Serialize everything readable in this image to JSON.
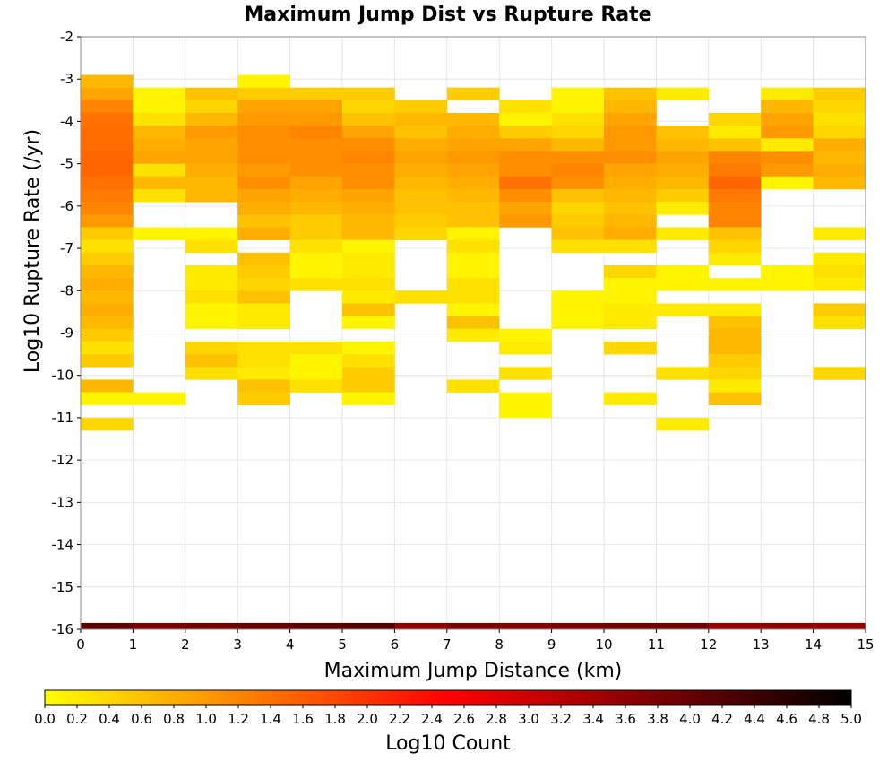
{
  "chart_data": {
    "type": "heatmap",
    "title": "Maximum Jump Dist vs Rupture Rate",
    "xlabel": "Maximum Jump Distance (km)",
    "ylabel": "Log10 Rupture Rate (/yr)",
    "xlim": [
      0,
      15
    ],
    "ylim": [
      -16,
      -2
    ],
    "x_ticks": [
      0,
      1,
      2,
      3,
      4,
      5,
      6,
      7,
      8,
      9,
      10,
      11,
      12,
      13,
      14,
      15
    ],
    "y_ticks": [
      -16,
      -15,
      -14,
      -13,
      -12,
      -11,
      -10,
      -9,
      -8,
      -7,
      -6,
      -5,
      -4,
      -3,
      -2
    ],
    "x_bin_width": 1,
    "y_bin_height": 0.3,
    "grid": true,
    "colorbar": {
      "label": "Log10 Count",
      "min": 0.0,
      "max": 5.0,
      "ticks": [
        "0.0",
        "0.2",
        "0.4",
        "0.6",
        "0.8",
        "1.0",
        "1.2",
        "1.4",
        "1.6",
        "1.8",
        "2.0",
        "2.2",
        "2.4",
        "2.6",
        "2.8",
        "3.0",
        "3.2",
        "3.4",
        "3.6",
        "3.8",
        "4.0",
        "4.2",
        "4.4",
        "4.6",
        "4.8",
        "5.0"
      ],
      "colors": [
        "#ffff00",
        "#ff8000",
        "#ff0000",
        "#800000",
        "#000000"
      ],
      "placement": "bottom"
    },
    "columns": [
      {
        "x": 0,
        "cells": [
          [
            -3.2,
            0.7
          ],
          [
            -3.5,
            0.9
          ],
          [
            -3.8,
            1.2
          ],
          [
            -4.1,
            1.4
          ],
          [
            -4.4,
            1.45
          ],
          [
            -4.7,
            1.45
          ],
          [
            -5.0,
            1.5
          ],
          [
            -5.3,
            1.5
          ],
          [
            -5.6,
            1.4
          ],
          [
            -5.9,
            1.3
          ],
          [
            -6.2,
            1.2
          ],
          [
            -6.5,
            1.0
          ],
          [
            -6.8,
            0.5
          ],
          [
            -7.1,
            0.3
          ],
          [
            -7.4,
            0.5
          ],
          [
            -7.7,
            0.7
          ],
          [
            -8.0,
            0.8
          ],
          [
            -8.3,
            0.7
          ],
          [
            -8.6,
            0.8
          ],
          [
            -8.9,
            0.7
          ],
          [
            -9.2,
            0.5
          ],
          [
            -9.5,
            0.3
          ],
          [
            -9.8,
            0.5
          ],
          [
            -10.4,
            0.7
          ],
          [
            -10.7,
            0.1
          ],
          [
            -11.3,
            0.4
          ]
        ]
      },
      {
        "x": 1,
        "cells": [
          [
            -3.5,
            0.1
          ],
          [
            -3.8,
            0.1
          ],
          [
            -4.1,
            0.3
          ],
          [
            -4.4,
            0.7
          ],
          [
            -4.7,
            0.8
          ],
          [
            -5.0,
            0.9
          ],
          [
            -5.3,
            0.3
          ],
          [
            -5.6,
            0.7
          ],
          [
            -5.9,
            0.3
          ],
          [
            -6.8,
            0.1
          ],
          [
            -10.7,
            0.1
          ]
        ]
      },
      {
        "x": 2,
        "cells": [
          [
            -3.5,
            0.6
          ],
          [
            -3.8,
            0.4
          ],
          [
            -4.1,
            0.7
          ],
          [
            -4.4,
            1.0
          ],
          [
            -4.7,
            0.9
          ],
          [
            -5.0,
            0.9
          ],
          [
            -5.3,
            0.8
          ],
          [
            -5.6,
            0.7
          ],
          [
            -5.9,
            0.7
          ],
          [
            -6.8,
            0.1
          ],
          [
            -7.1,
            0.3
          ],
          [
            -7.7,
            0.2
          ],
          [
            -8.0,
            0.2
          ],
          [
            -8.3,
            0.3
          ],
          [
            -8.6,
            0.1
          ],
          [
            -8.9,
            0.1
          ],
          [
            -9.5,
            0.4
          ],
          [
            -9.8,
            0.6
          ],
          [
            -10.1,
            0.3
          ]
        ]
      },
      {
        "x": 3,
        "cells": [
          [
            -3.2,
            0.1
          ],
          [
            -3.5,
            0.5
          ],
          [
            -3.8,
            0.9
          ],
          [
            -4.1,
            1.0
          ],
          [
            -4.4,
            1.1
          ],
          [
            -4.7,
            1.1
          ],
          [
            -5.0,
            1.1
          ],
          [
            -5.3,
            1.0
          ],
          [
            -5.6,
            1.1
          ],
          [
            -5.9,
            0.9
          ],
          [
            -6.2,
            0.8
          ],
          [
            -6.5,
            0.6
          ],
          [
            -6.8,
            0.8
          ],
          [
            -7.4,
            0.6
          ],
          [
            -7.7,
            0.5
          ],
          [
            -8.0,
            0.4
          ],
          [
            -8.3,
            0.6
          ],
          [
            -8.6,
            0.2
          ],
          [
            -8.9,
            0.2
          ],
          [
            -9.5,
            0.3
          ],
          [
            -9.8,
            0.3
          ],
          [
            -10.1,
            0.2
          ],
          [
            -10.4,
            0.6
          ],
          [
            -10.7,
            0.5
          ]
        ]
      },
      {
        "x": 4,
        "cells": [
          [
            -3.5,
            0.5
          ],
          [
            -3.8,
            0.9
          ],
          [
            -4.1,
            1.0
          ],
          [
            -4.4,
            1.2
          ],
          [
            -4.7,
            1.1
          ],
          [
            -5.0,
            1.1
          ],
          [
            -5.3,
            1.1
          ],
          [
            -5.6,
            0.9
          ],
          [
            -5.9,
            0.8
          ],
          [
            -6.2,
            0.7
          ],
          [
            -6.5,
            0.5
          ],
          [
            -6.8,
            0.5
          ],
          [
            -7.1,
            0.3
          ],
          [
            -7.4,
            0.1
          ],
          [
            -7.7,
            0.1
          ],
          [
            -8.0,
            0.3
          ],
          [
            -9.5,
            0.3
          ],
          [
            -9.8,
            0.1
          ],
          [
            -10.1,
            0.1
          ],
          [
            -10.4,
            0.3
          ]
        ]
      },
      {
        "x": 5,
        "cells": [
          [
            -3.5,
            0.5
          ],
          [
            -3.8,
            0.4
          ],
          [
            -4.1,
            0.6
          ],
          [
            -4.4,
            0.9
          ],
          [
            -4.7,
            1.1
          ],
          [
            -5.0,
            1.2
          ],
          [
            -5.3,
            1.1
          ],
          [
            -5.6,
            1.1
          ],
          [
            -5.9,
            0.9
          ],
          [
            -6.2,
            0.8
          ],
          [
            -6.5,
            0.7
          ],
          [
            -6.8,
            0.7
          ],
          [
            -7.1,
            0.1
          ],
          [
            -7.4,
            0.2
          ],
          [
            -7.7,
            0.2
          ],
          [
            -8.0,
            0.3
          ],
          [
            -8.3,
            0.2
          ],
          [
            -8.6,
            0.6
          ],
          [
            -8.9,
            0.1
          ],
          [
            -9.5,
            0.1
          ],
          [
            -9.8,
            0.3
          ],
          [
            -10.1,
            0.5
          ],
          [
            -10.4,
            0.5
          ],
          [
            -10.7,
            0.1
          ]
        ]
      },
      {
        "x": 6,
        "cells": [
          [
            -3.8,
            0.5
          ],
          [
            -4.1,
            0.7
          ],
          [
            -4.4,
            0.6
          ],
          [
            -4.7,
            0.8
          ],
          [
            -5.0,
            0.9
          ],
          [
            -5.3,
            0.8
          ],
          [
            -5.6,
            0.7
          ],
          [
            -5.9,
            0.6
          ],
          [
            -6.2,
            0.6
          ],
          [
            -6.5,
            0.5
          ],
          [
            -6.8,
            0.4
          ],
          [
            -8.3,
            0.3
          ]
        ]
      },
      {
        "x": 7,
        "cells": [
          [
            -3.5,
            0.5
          ],
          [
            -4.1,
            0.7
          ],
          [
            -4.4,
            0.8
          ],
          [
            -4.7,
            0.9
          ],
          [
            -5.0,
            1.0
          ],
          [
            -5.3,
            0.9
          ],
          [
            -5.6,
            0.8
          ],
          [
            -5.9,
            0.7
          ],
          [
            -6.2,
            0.6
          ],
          [
            -6.5,
            0.6
          ],
          [
            -6.8,
            0.1
          ],
          [
            -7.1,
            0.3
          ],
          [
            -7.4,
            0.1
          ],
          [
            -7.7,
            0.1
          ],
          [
            -8.0,
            0.3
          ],
          [
            -8.3,
            0.3
          ],
          [
            -8.6,
            0.1
          ],
          [
            -8.9,
            0.6
          ],
          [
            -9.2,
            0.2
          ],
          [
            -10.4,
            0.3
          ]
        ]
      },
      {
        "x": 8,
        "cells": [
          [
            -3.8,
            0.3
          ],
          [
            -4.1,
            0.1
          ],
          [
            -4.4,
            0.5
          ],
          [
            -4.7,
            0.9
          ],
          [
            -5.0,
            1.1
          ],
          [
            -5.3,
            1.1
          ],
          [
            -5.6,
            1.4
          ],
          [
            -5.9,
            1.1
          ],
          [
            -6.2,
            0.9
          ],
          [
            -6.5,
            1.0
          ],
          [
            -9.2,
            0.1
          ],
          [
            -9.5,
            0.2
          ],
          [
            -10.1,
            0.3
          ],
          [
            -10.7,
            0.1
          ],
          [
            -11.0,
            0.1
          ]
        ]
      },
      {
        "x": 9,
        "cells": [
          [
            -3.5,
            0.1
          ],
          [
            -3.8,
            0.1
          ],
          [
            -4.1,
            0.3
          ],
          [
            -4.4,
            0.4
          ],
          [
            -4.7,
            0.7
          ],
          [
            -5.0,
            1.1
          ],
          [
            -5.3,
            1.2
          ],
          [
            -5.6,
            1.1
          ],
          [
            -5.9,
            0.6
          ],
          [
            -6.2,
            0.4
          ],
          [
            -6.5,
            0.5
          ],
          [
            -6.8,
            0.6
          ],
          [
            -7.1,
            0.3
          ],
          [
            -8.3,
            0.1
          ],
          [
            -8.6,
            0.1
          ],
          [
            -8.9,
            0.1
          ]
        ]
      },
      {
        "x": 10,
        "cells": [
          [
            -3.5,
            0.6
          ],
          [
            -3.8,
            0.7
          ],
          [
            -4.1,
            0.9
          ],
          [
            -4.4,
            1.0
          ],
          [
            -4.7,
            1.0
          ],
          [
            -5.0,
            1.1
          ],
          [
            -5.3,
            0.9
          ],
          [
            -5.6,
            0.8
          ],
          [
            -5.9,
            0.7
          ],
          [
            -6.2,
            0.6
          ],
          [
            -6.5,
            0.7
          ],
          [
            -6.8,
            0.8
          ],
          [
            -7.1,
            0.3
          ],
          [
            -7.7,
            0.4
          ],
          [
            -8.0,
            0.1
          ],
          [
            -8.3,
            0.1
          ],
          [
            -8.6,
            0.2
          ],
          [
            -8.9,
            0.2
          ],
          [
            -9.5,
            0.4
          ],
          [
            -10.7,
            0.2
          ]
        ]
      },
      {
        "x": 11,
        "cells": [
          [
            -3.5,
            0.2
          ],
          [
            -4.4,
            0.6
          ],
          [
            -4.7,
            0.7
          ],
          [
            -5.0,
            0.9
          ],
          [
            -5.3,
            0.8
          ],
          [
            -5.6,
            0.7
          ],
          [
            -5.9,
            0.5
          ],
          [
            -6.2,
            0.2
          ],
          [
            -6.8,
            0.2
          ],
          [
            -7.7,
            0.1
          ],
          [
            -8.0,
            0.1
          ],
          [
            -8.6,
            0.2
          ],
          [
            -10.1,
            0.3
          ],
          [
            -11.3,
            0.2
          ]
        ]
      },
      {
        "x": 12,
        "cells": [
          [
            -4.1,
            0.4
          ],
          [
            -4.4,
            0.2
          ],
          [
            -4.7,
            0.6
          ],
          [
            -5.0,
            1.2
          ],
          [
            -5.3,
            1.3
          ],
          [
            -5.6,
            1.5
          ],
          [
            -5.9,
            1.3
          ],
          [
            -6.2,
            1.2
          ],
          [
            -6.5,
            1.2
          ],
          [
            -6.8,
            0.6
          ],
          [
            -7.1,
            0.4
          ],
          [
            -7.4,
            0.2
          ],
          [
            -8.0,
            0.1
          ],
          [
            -8.6,
            0.2
          ],
          [
            -8.9,
            0.6
          ],
          [
            -9.2,
            0.7
          ],
          [
            -9.5,
            0.7
          ],
          [
            -9.8,
            0.5
          ],
          [
            -10.1,
            0.4
          ],
          [
            -10.4,
            0.2
          ],
          [
            -10.7,
            0.6
          ]
        ]
      },
      {
        "x": 13,
        "cells": [
          [
            -3.5,
            0.2
          ],
          [
            -3.8,
            0.7
          ],
          [
            -4.1,
            0.9
          ],
          [
            -4.4,
            1.0
          ],
          [
            -4.7,
            0.2
          ],
          [
            -5.0,
            1.1
          ],
          [
            -5.3,
            1.0
          ],
          [
            -5.6,
            0.1
          ],
          [
            -7.7,
            0.1
          ],
          [
            -8.0,
            0.1
          ]
        ]
      },
      {
        "x": 14,
        "cells": [
          [
            -3.5,
            0.5
          ],
          [
            -3.8,
            0.4
          ],
          [
            -4.1,
            0.3
          ],
          [
            -4.4,
            0.4
          ],
          [
            -4.7,
            0.8
          ],
          [
            -5.0,
            0.7
          ],
          [
            -5.3,
            0.8
          ],
          [
            -5.6,
            0.7
          ],
          [
            -6.8,
            0.2
          ],
          [
            -7.4,
            0.2
          ],
          [
            -7.7,
            0.3
          ],
          [
            -8.0,
            0.2
          ],
          [
            -8.6,
            0.5
          ],
          [
            -8.9,
            0.3
          ],
          [
            -10.1,
            0.4
          ]
        ]
      }
    ],
    "bottom_row": {
      "y": -16.0,
      "values": [
        4.1,
        3.8,
        3.9,
        4.0,
        4.1,
        4.2,
        3.6,
        3.8,
        3.7,
        3.8,
        3.9,
        3.9,
        3.5,
        3.6,
        3.5
      ]
    }
  }
}
